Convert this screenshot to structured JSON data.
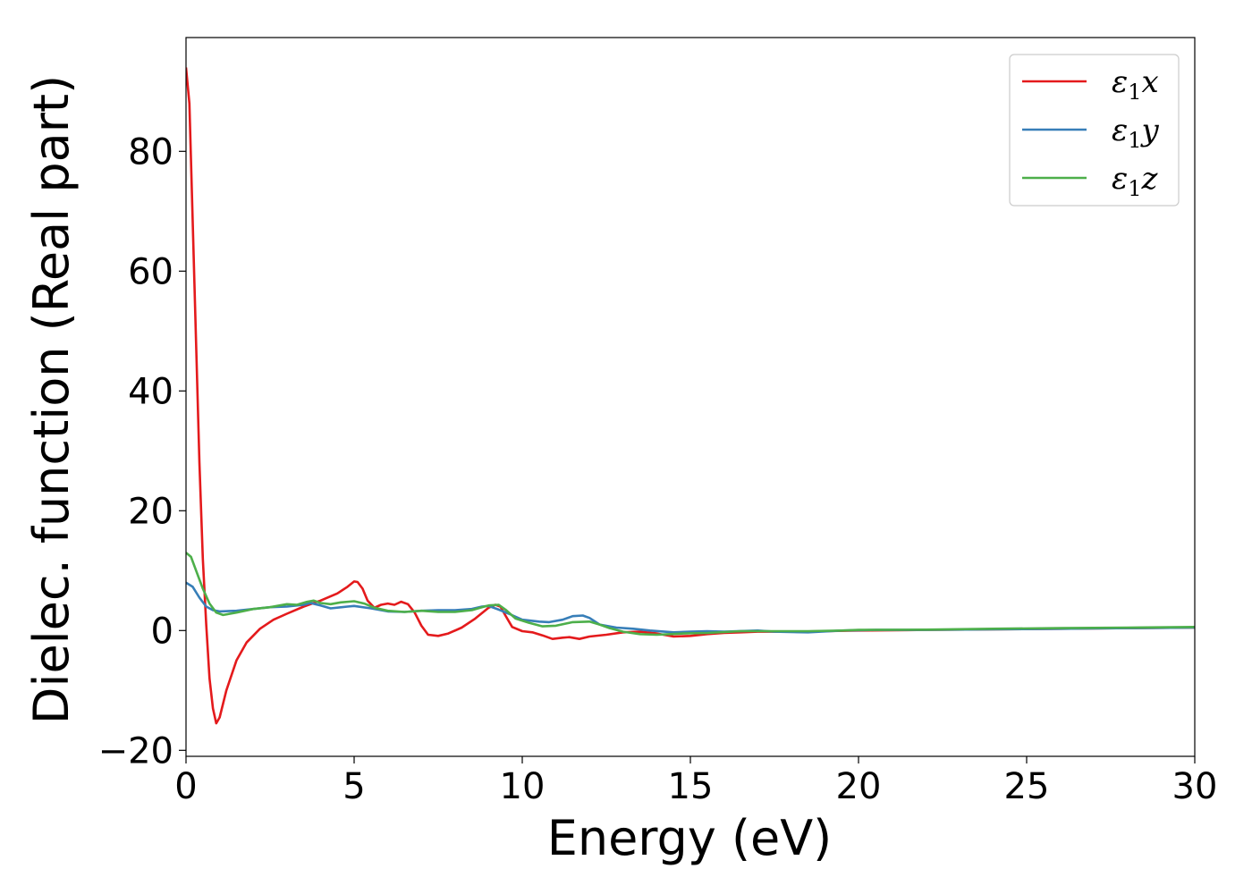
{
  "chart_data": {
    "type": "line",
    "xlabel": "Energy (eV)",
    "ylabel": "Dielec. function (Real part)",
    "xlim": [
      0,
      30
    ],
    "ylim": [
      -21,
      99
    ],
    "x_ticks": [
      0,
      5,
      10,
      15,
      20,
      25,
      30
    ],
    "y_ticks": [
      -20,
      0,
      20,
      40,
      60,
      80
    ],
    "x_tick_labels": [
      "0",
      "5",
      "10",
      "15",
      "20",
      "25",
      "30"
    ],
    "y_tick_labels": [
      "−20",
      "0",
      "20",
      "40",
      "60",
      "80"
    ],
    "grid": false,
    "legend_position": "top-right",
    "series": [
      {
        "name": "ε₁x",
        "legend_main": "ε",
        "legend_sub": "1",
        "legend_tail": "x",
        "color": "#e41a1c",
        "points": [
          [
            0.0,
            94
          ],
          [
            0.1,
            88
          ],
          [
            0.25,
            58
          ],
          [
            0.4,
            28
          ],
          [
            0.5,
            12
          ],
          [
            0.6,
            1
          ],
          [
            0.7,
            -8
          ],
          [
            0.8,
            -13
          ],
          [
            0.9,
            -15.5
          ],
          [
            1.0,
            -14.5
          ],
          [
            1.2,
            -10
          ],
          [
            1.5,
            -5
          ],
          [
            1.8,
            -2
          ],
          [
            2.2,
            0.3
          ],
          [
            2.6,
            1.8
          ],
          [
            3.0,
            2.8
          ],
          [
            3.5,
            4
          ],
          [
            4.0,
            5
          ],
          [
            4.5,
            6.2
          ],
          [
            4.8,
            7.3
          ],
          [
            5.0,
            8.2
          ],
          [
            5.1,
            8.1
          ],
          [
            5.25,
            7
          ],
          [
            5.4,
            5
          ],
          [
            5.6,
            3.8
          ],
          [
            5.8,
            4.3
          ],
          [
            6.0,
            4.5
          ],
          [
            6.2,
            4.3
          ],
          [
            6.4,
            4.8
          ],
          [
            6.6,
            4.4
          ],
          [
            6.8,
            3
          ],
          [
            7.0,
            0.8
          ],
          [
            7.2,
            -0.7
          ],
          [
            7.5,
            -0.9
          ],
          [
            7.8,
            -0.5
          ],
          [
            8.2,
            0.5
          ],
          [
            8.6,
            2
          ],
          [
            9.0,
            3.8
          ],
          [
            9.2,
            4.3
          ],
          [
            9.35,
            4
          ],
          [
            9.5,
            2.5
          ],
          [
            9.7,
            0.6
          ],
          [
            10.0,
            -0.1
          ],
          [
            10.3,
            -0.3
          ],
          [
            10.6,
            -0.8
          ],
          [
            10.9,
            -1.4
          ],
          [
            11.2,
            -1.2
          ],
          [
            11.4,
            -1.1
          ],
          [
            11.7,
            -1.4
          ],
          [
            12.0,
            -1
          ],
          [
            12.5,
            -0.7
          ],
          [
            13.0,
            -0.3
          ],
          [
            13.5,
            -0.2
          ],
          [
            14.0,
            -0.5
          ],
          [
            14.5,
            -1
          ],
          [
            15.0,
            -0.9
          ],
          [
            15.5,
            -0.6
          ],
          [
            16.0,
            -0.4
          ],
          [
            16.5,
            -0.3
          ],
          [
            17.0,
            -0.2
          ],
          [
            18.0,
            -0.2
          ],
          [
            19.0,
            -0.1
          ],
          [
            20.0,
            0
          ],
          [
            22.0,
            0.1
          ],
          [
            24.0,
            0.2
          ],
          [
            26.0,
            0.3
          ],
          [
            28.0,
            0.4
          ],
          [
            30.0,
            0.5
          ]
        ]
      },
      {
        "name": "ε₁y",
        "legend_main": "ε",
        "legend_sub": "1",
        "legend_tail": "y",
        "color": "#377eb8",
        "points": [
          [
            0.0,
            8
          ],
          [
            0.2,
            7.3
          ],
          [
            0.4,
            5.5
          ],
          [
            0.6,
            4
          ],
          [
            0.8,
            3.4
          ],
          [
            1.0,
            3.2
          ],
          [
            1.5,
            3.3
          ],
          [
            2.0,
            3.6
          ],
          [
            2.5,
            3.9
          ],
          [
            3.0,
            4
          ],
          [
            3.5,
            4.3
          ],
          [
            3.7,
            4.6
          ],
          [
            4.0,
            4.2
          ],
          [
            4.3,
            3.7
          ],
          [
            4.8,
            4
          ],
          [
            5.0,
            4.1
          ],
          [
            5.5,
            3.7
          ],
          [
            6.0,
            3.2
          ],
          [
            6.5,
            3.1
          ],
          [
            7.0,
            3.3
          ],
          [
            7.5,
            3.4
          ],
          [
            8.0,
            3.4
          ],
          [
            8.5,
            3.6
          ],
          [
            8.8,
            4
          ],
          [
            9.0,
            4.1
          ],
          [
            9.3,
            3.5
          ],
          [
            9.6,
            2.8
          ],
          [
            10.0,
            1.8
          ],
          [
            10.5,
            1.5
          ],
          [
            10.8,
            1.4
          ],
          [
            11.2,
            1.8
          ],
          [
            11.5,
            2.4
          ],
          [
            11.8,
            2.5
          ],
          [
            12.0,
            2.1
          ],
          [
            12.3,
            1
          ],
          [
            12.8,
            0.5
          ],
          [
            13.3,
            0.3
          ],
          [
            13.8,
            0
          ],
          [
            14.5,
            -0.3
          ],
          [
            15.0,
            -0.2
          ],
          [
            15.5,
            -0.1
          ],
          [
            16.0,
            -0.2
          ],
          [
            17.0,
            0
          ],
          [
            17.5,
            -0.2
          ],
          [
            18.5,
            -0.3
          ],
          [
            19.5,
            0
          ],
          [
            20.5,
            0.1
          ],
          [
            22.0,
            0.1
          ],
          [
            24.0,
            0.2
          ],
          [
            26.0,
            0.3
          ],
          [
            28.0,
            0.4
          ],
          [
            30.0,
            0.5
          ]
        ]
      },
      {
        "name": "ε₁z",
        "legend_main": "ε",
        "legend_sub": "1",
        "legend_tail": "z",
        "color": "#4daf4a",
        "points": [
          [
            0.0,
            13
          ],
          [
            0.15,
            12.3
          ],
          [
            0.3,
            10
          ],
          [
            0.5,
            7
          ],
          [
            0.7,
            4.5
          ],
          [
            0.9,
            3
          ],
          [
            1.1,
            2.6
          ],
          [
            1.5,
            3
          ],
          [
            2.0,
            3.6
          ],
          [
            2.5,
            3.9
          ],
          [
            3.0,
            4.4
          ],
          [
            3.3,
            4.3
          ],
          [
            3.6,
            4.8
          ],
          [
            3.8,
            5
          ],
          [
            4.0,
            4.6
          ],
          [
            4.3,
            4.4
          ],
          [
            4.6,
            4.7
          ],
          [
            5.0,
            4.9
          ],
          [
            5.3,
            4.5
          ],
          [
            5.6,
            3.8
          ],
          [
            6.0,
            3.3
          ],
          [
            6.5,
            3.1
          ],
          [
            7.0,
            3.3
          ],
          [
            7.5,
            3.1
          ],
          [
            8.0,
            3.1
          ],
          [
            8.5,
            3.4
          ],
          [
            8.8,
            3.9
          ],
          [
            9.0,
            4.2
          ],
          [
            9.3,
            4.3
          ],
          [
            9.5,
            3.5
          ],
          [
            9.8,
            2
          ],
          [
            10.2,
            1.3
          ],
          [
            10.6,
            0.7
          ],
          [
            11.0,
            0.8
          ],
          [
            11.5,
            1.4
          ],
          [
            12.0,
            1.5
          ],
          [
            12.3,
            1
          ],
          [
            12.6,
            0.4
          ],
          [
            13.0,
            -0.2
          ],
          [
            13.5,
            -0.6
          ],
          [
            14.0,
            -0.7
          ],
          [
            14.4,
            -0.6
          ],
          [
            14.8,
            -0.5
          ],
          [
            15.5,
            -0.4
          ],
          [
            16.5,
            -0.1
          ],
          [
            17.5,
            -0.1
          ],
          [
            18.5,
            -0.1
          ],
          [
            19.5,
            0
          ],
          [
            20.0,
            0.1
          ],
          [
            22.0,
            0.15
          ],
          [
            24.0,
            0.3
          ],
          [
            26.0,
            0.4
          ],
          [
            28.0,
            0.5
          ],
          [
            30.0,
            0.6
          ]
        ]
      }
    ]
  }
}
